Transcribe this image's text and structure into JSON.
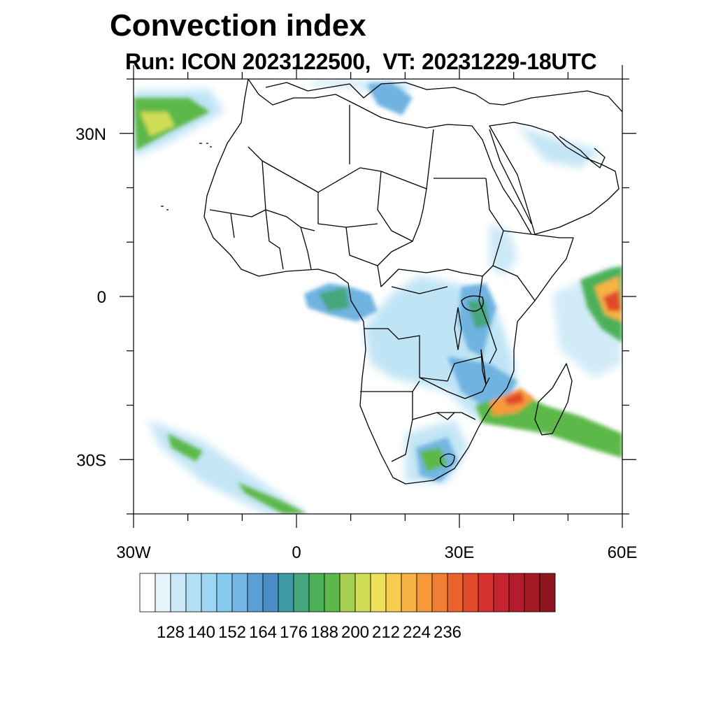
{
  "title": "Convection index",
  "subtitle": "Run: ICON 2023122500,  VT: 20231229-18UTC",
  "map": {
    "projection": "cylindrical-equidistant",
    "lon_range": [
      -30,
      60
    ],
    "lat_range": [
      -40,
      40
    ],
    "x_ticks": [
      {
        "lon": -30,
        "label": "30W"
      },
      {
        "lon": 0,
        "label": "0"
      },
      {
        "lon": 30,
        "label": "30E"
      },
      {
        "lon": 60,
        "label": "60E"
      }
    ],
    "y_ticks": [
      {
        "lat": 30,
        "label": "30N"
      },
      {
        "lat": 0,
        "label": "0"
      },
      {
        "lat": -30,
        "label": "30S"
      }
    ],
    "minor_lon_step": 10,
    "minor_lat_step": 10
  },
  "colorbar": {
    "colors": [
      "#ffffff",
      "#e6f4fb",
      "#cbe8f6",
      "#b4e0f5",
      "#9cd6f3",
      "#85c9ee",
      "#74b6e4",
      "#5c9fd6",
      "#4a8ec8",
      "#3e9aa5",
      "#46a67d",
      "#4cb058",
      "#5cb848",
      "#a6cf50",
      "#cfdc55",
      "#ede05a",
      "#f8cc4f",
      "#f6b244",
      "#f5993a",
      "#f07e33",
      "#ea622c",
      "#e04a2a",
      "#d63330",
      "#c52330",
      "#b31c2a",
      "#a31a24",
      "#8e1620"
    ],
    "tick_labels": [
      "128",
      "140",
      "152",
      "164",
      "176",
      "188",
      "200",
      "212",
      "224",
      "236"
    ],
    "first_label_after_box": 2,
    "label_every": 2
  },
  "colors": {
    "axis": "#000000",
    "coastline": "#000000"
  }
}
